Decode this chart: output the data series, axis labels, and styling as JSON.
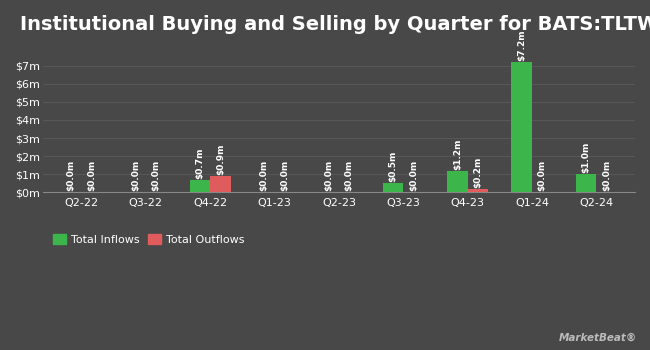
{
  "title": "Institutional Buying and Selling by Quarter for BATS:​TLTW",
  "quarters": [
    "Q2-22",
    "Q3-22",
    "Q4-22",
    "Q1-23",
    "Q2-23",
    "Q3-23",
    "Q4-23",
    "Q1-24",
    "Q2-24"
  ],
  "inflows": [
    0.0,
    0.0,
    0.7,
    0.0,
    0.0,
    0.5,
    1.2,
    7.2,
    1.0
  ],
  "outflows": [
    0.0,
    0.0,
    0.9,
    0.0,
    0.0,
    0.0,
    0.2,
    0.0,
    0.0
  ],
  "inflow_labels": [
    "$0.0m",
    "$0.0m",
    "$0.7m",
    "$0.0m",
    "$0.0m",
    "$0.5m",
    "$1.2m",
    "$7.2m",
    "$1.0m"
  ],
  "outflow_labels": [
    "$0.0m",
    "$0.0m",
    "$0.9m",
    "$0.0m",
    "$0.0m",
    "$0.0m",
    "$0.2m",
    "$0.0m",
    "$0.0m"
  ],
  "inflow_color": "#3cb54a",
  "outflow_color": "#e05c5c",
  "bg_color": "#484848",
  "text_color": "#ffffff",
  "grid_color": "#5a5a5a",
  "title_fontsize": 14,
  "tick_fontsize": 8,
  "label_fontsize": 6.5,
  "bar_width": 0.32,
  "ylim": [
    0,
    8.2
  ],
  "yticks": [
    0,
    1,
    2,
    3,
    4,
    5,
    6,
    7
  ],
  "ytick_labels": [
    "$0m",
    "$1m",
    "$2m",
    "$3m",
    "$4m",
    "$5m",
    "$6m",
    "$7m"
  ],
  "legend_inflow": "Total Inflows",
  "legend_outflow": "Total Outflows"
}
